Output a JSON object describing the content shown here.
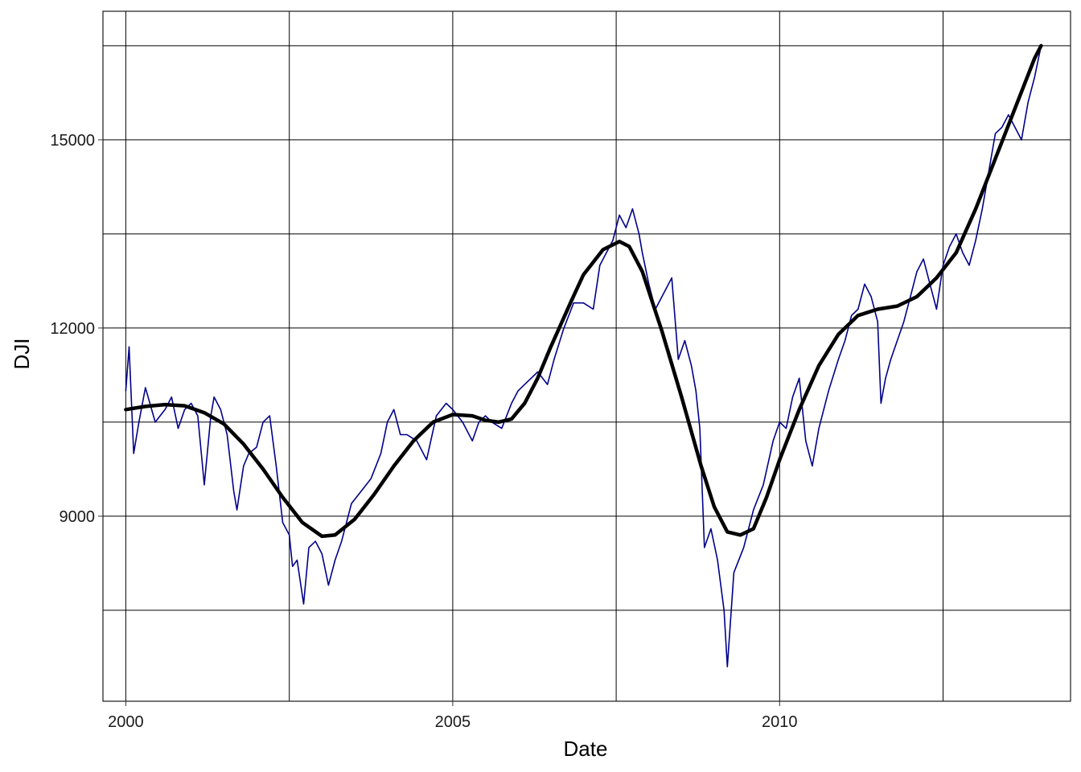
{
  "colors": {
    "series": "#00008B",
    "smooth": "#000000",
    "grid": "#000000",
    "background": "#ffffff"
  },
  "chart_data": {
    "type": "line",
    "title": "",
    "xlabel": "Date",
    "ylabel": "DJI",
    "xlim": [
      1999.65,
      2014.45
    ],
    "ylim": [
      6050,
      17050
    ],
    "x_ticks": [
      2000,
      2005,
      2010
    ],
    "x_tick_labels": [
      "2000",
      "2005",
      "2010"
    ],
    "x_minor_ticks": [
      2002.5,
      2007.5,
      2012.5
    ],
    "y_ticks": [
      9000,
      12000,
      15000
    ],
    "y_tick_labels": [
      "9000",
      "12000",
      "15000"
    ],
    "y_minor_ticks": [
      7500,
      10500,
      13500,
      16500
    ],
    "grid": true,
    "legend": "none",
    "series": [
      {
        "kind": "daily-close",
        "x": [
          2000.0,
          2000.05,
          2000.12,
          2000.2,
          2000.3,
          2000.45,
          2000.6,
          2000.7,
          2000.8,
          2000.9,
          2001.0,
          2001.1,
          2001.2,
          2001.3,
          2001.35,
          2001.45,
          2001.55,
          2001.65,
          2001.7,
          2001.8,
          2001.88,
          2002.0,
          2002.1,
          2002.2,
          2002.3,
          2002.4,
          2002.5,
          2002.55,
          2002.62,
          2002.72,
          2002.8,
          2002.9,
          2003.0,
          2003.1,
          2003.2,
          2003.3,
          2003.45,
          2003.6,
          2003.75,
          2003.9,
          2004.0,
          2004.1,
          2004.2,
          2004.3,
          2004.45,
          2004.6,
          2004.75,
          2004.9,
          2005.0,
          2005.15,
          2005.3,
          2005.4,
          2005.5,
          2005.6,
          2005.75,
          2005.9,
          2006.0,
          2006.1,
          2006.2,
          2006.3,
          2006.45,
          2006.55,
          2006.7,
          2006.85,
          2007.0,
          2007.15,
          2007.25,
          2007.45,
          2007.55,
          2007.65,
          2007.75,
          2007.85,
          2007.9,
          2008.0,
          2008.1,
          2008.2,
          2008.35,
          2008.45,
          2008.55,
          2008.65,
          2008.72,
          2008.78,
          2008.85,
          2008.95,
          2009.05,
          2009.15,
          2009.2,
          2009.3,
          2009.45,
          2009.6,
          2009.75,
          2009.9,
          2010.0,
          2010.1,
          2010.2,
          2010.3,
          2010.4,
          2010.5,
          2010.6,
          2010.75,
          2010.9,
          2011.0,
          2011.1,
          2011.2,
          2011.3,
          2011.4,
          2011.5,
          2011.55,
          2011.62,
          2011.7,
          2011.8,
          2011.9,
          2012.0,
          2012.1,
          2012.2,
          2012.3,
          2012.4,
          2012.5,
          2012.6,
          2012.7,
          2012.8,
          2012.9,
          2013.0,
          2013.1,
          2013.2,
          2013.3,
          2013.4,
          2013.5,
          2013.6,
          2013.7,
          2013.8,
          2013.9,
          2014.0
        ],
        "y": [
          11000,
          11700,
          10000,
          10500,
          11050,
          10500,
          10700,
          10900,
          10400,
          10700,
          10800,
          10600,
          9500,
          10600,
          10900,
          10700,
          10300,
          9400,
          9100,
          9800,
          10000,
          10100,
          10500,
          10600,
          9800,
          8900,
          8700,
          8200,
          8300,
          7600,
          8500,
          8600,
          8400,
          7900,
          8300,
          8600,
          9200,
          9400,
          9600,
          10000,
          10500,
          10700,
          10300,
          10300,
          10200,
          9900,
          10600,
          10800,
          10700,
          10500,
          10200,
          10500,
          10600,
          10500,
          10400,
          10800,
          11000,
          11100,
          11200,
          11300,
          11100,
          11500,
          12000,
          12400,
          12400,
          12300,
          13000,
          13400,
          13800,
          13600,
          13900,
          13500,
          13200,
          12700,
          12300,
          12500,
          12800,
          11500,
          11800,
          11400,
          11000,
          10400,
          8500,
          8800,
          8300,
          7500,
          6600,
          8100,
          8500,
          9100,
          9500,
          10200,
          10500,
          10400,
          10900,
          11200,
          10200,
          9800,
          10400,
          11000,
          11500,
          11800,
          12200,
          12300,
          12700,
          12500,
          12100,
          10800,
          11200,
          11500,
          11800,
          12100,
          12500,
          12900,
          13100,
          12700,
          12300,
          13000,
          13300,
          13500,
          13200,
          13000,
          13400,
          13900,
          14500,
          15100,
          15200,
          15400,
          15200,
          15000,
          15600,
          16000,
          16500
        ]
      },
      {
        "kind": "smoothed-trend",
        "x": [
          2000.0,
          2000.3,
          2000.6,
          2000.9,
          2001.2,
          2001.5,
          2001.8,
          2002.1,
          2002.4,
          2002.7,
          2003.0,
          2003.2,
          2003.5,
          2003.8,
          2004.1,
          2004.4,
          2004.7,
          2005.0,
          2005.3,
          2005.5,
          2005.7,
          2005.9,
          2006.1,
          2006.3,
          2006.5,
          2006.8,
          2007.0,
          2007.3,
          2007.55,
          2007.7,
          2007.9,
          2008.2,
          2008.5,
          2008.8,
          2009.0,
          2009.2,
          2009.4,
          2009.6,
          2009.8,
          2010.0,
          2010.3,
          2010.6,
          2010.9,
          2011.2,
          2011.5,
          2011.8,
          2012.1,
          2012.4,
          2012.7,
          2013.0,
          2013.3,
          2013.6,
          2013.9,
          2014.0
        ],
        "y": [
          10700,
          10750,
          10780,
          10760,
          10650,
          10470,
          10150,
          9750,
          9300,
          8900,
          8680,
          8700,
          8950,
          9350,
          9800,
          10200,
          10500,
          10620,
          10600,
          10530,
          10500,
          10550,
          10800,
          11200,
          11700,
          12400,
          12850,
          13250,
          13380,
          13300,
          12900,
          11950,
          10900,
          9800,
          9150,
          8750,
          8700,
          8800,
          9300,
          9900,
          10700,
          11400,
          11900,
          12200,
          12300,
          12350,
          12500,
          12800,
          13200,
          13900,
          14700,
          15500,
          16300,
          16500
        ]
      }
    ]
  }
}
